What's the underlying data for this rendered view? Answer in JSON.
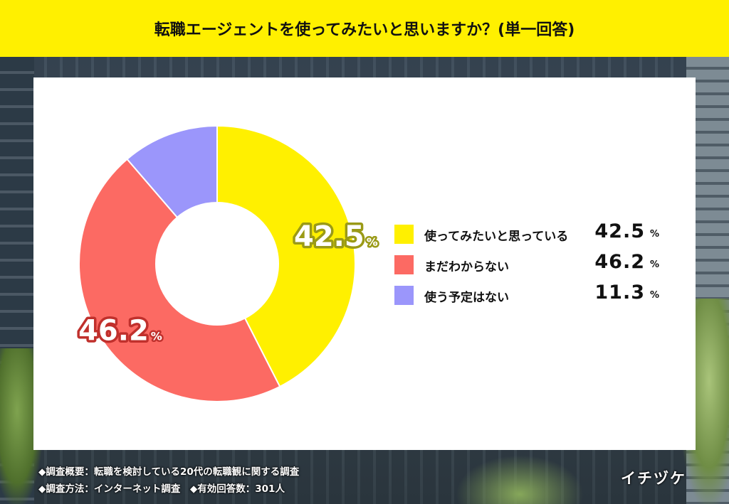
{
  "header": {
    "title": "転職エージェントを使ってみたいと思いますか？(単一回答)"
  },
  "chart_data": {
    "type": "pie",
    "title": "転職エージェントを使ってみたいと思いますか？(単一回答)",
    "donut": true,
    "unit": "%",
    "categories": [
      "使ってみたいと思っている",
      "まだわからない",
      "使う予定はない"
    ],
    "values": [
      42.5,
      46.2,
      11.3
    ],
    "value_labels": [
      "42.5",
      "46.2",
      "11.3"
    ],
    "colors": [
      "#fff000",
      "#fc6a63",
      "#9b96fb"
    ],
    "label_stroke_colors": [
      "#9a9a16",
      "#c0302c",
      "#6560c0"
    ],
    "slice_labels_shown": [
      true,
      true,
      false
    ],
    "legend_position": "right"
  },
  "legend": {
    "items": [
      {
        "label": "使ってみたいと思っている",
        "value": "42.5",
        "unit": "%",
        "color": "#fff000"
      },
      {
        "label": "まだわからない",
        "value": "46.2",
        "unit": "%",
        "color": "#fc6a63"
      },
      {
        "label": "使う予定はない",
        "value": "11.3",
        "unit": "%",
        "color": "#9b96fb"
      }
    ]
  },
  "footer": {
    "line1": "◆調査概要：転職を検討している20代の転職観に関する調査",
    "line2": "◆調査方法：インターネット調査　◆有効回答数：301人",
    "brand": "イチヅケ"
  }
}
